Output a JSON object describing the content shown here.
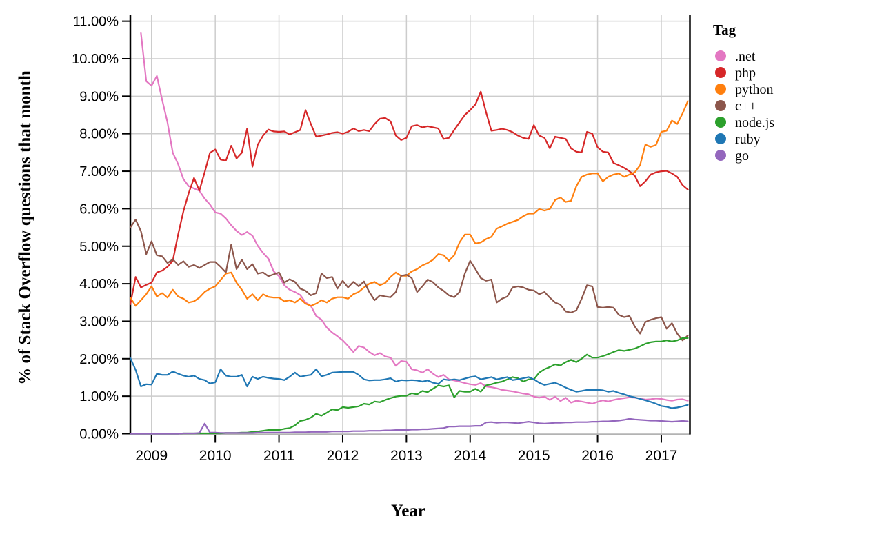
{
  "figure": {
    "background_color": "#ffffff",
    "gridline_color": "#cccccc",
    "left_spine_color": "#000000",
    "right_spine_color": "#000000",
    "bottom_axis_color": "#b3b3b3",
    "tick_color": "#000000"
  },
  "chart_data": {
    "type": "line",
    "title": "",
    "xlabel": "Year",
    "ylabel": "% of Stack Overflow questions that month",
    "legend_title": "Tag",
    "legend_position": "right-top",
    "grid": true,
    "x_unit": "decimal year, monthly samples",
    "x_start": 2008.667,
    "x_step": 0.083333,
    "xlim": [
      2008.667,
      2017.46
    ],
    "ylim": [
      0,
      11
    ],
    "x_ticks": [
      2009,
      2010,
      2011,
      2012,
      2013,
      2014,
      2015,
      2016,
      2017
    ],
    "x_tick_labels": [
      "2009",
      "2010",
      "2011",
      "2012",
      "2013",
      "2014",
      "2015",
      "2016",
      "2017"
    ],
    "y_ticks": [
      0,
      1,
      2,
      3,
      4,
      5,
      6,
      7,
      8,
      9,
      10,
      11
    ],
    "y_tick_labels": [
      "0.00%",
      "1.00%",
      "2.00%",
      "3.00%",
      "4.00%",
      "5.00%",
      "6.00%",
      "7.00%",
      "8.00%",
      "9.00%",
      "10.00%",
      "11.00%"
    ],
    "series": [
      {
        "name": ".net",
        "color": "#e377c2",
        "values": [
          null,
          null,
          10.68,
          9.4,
          9.28,
          9.54,
          8.9,
          8.3,
          7.49,
          7.19,
          6.79,
          6.6,
          6.54,
          6.48,
          6.27,
          6.11,
          5.9,
          5.87,
          5.74,
          5.56,
          5.41,
          5.3,
          5.38,
          5.28,
          5.01,
          4.82,
          4.67,
          4.33,
          4.2,
          3.96,
          3.84,
          3.78,
          3.7,
          3.5,
          3.41,
          3.14,
          3.04,
          2.83,
          2.7,
          2.6,
          2.49,
          2.34,
          2.18,
          2.34,
          2.3,
          2.18,
          2.09,
          2.15,
          2.06,
          2.03,
          1.81,
          1.94,
          1.92,
          1.72,
          1.69,
          1.63,
          1.72,
          1.6,
          1.51,
          1.57,
          1.45,
          1.42,
          1.39,
          1.35,
          1.32,
          1.3,
          1.35,
          1.26,
          1.24,
          1.21,
          1.17,
          1.15,
          1.13,
          1.1,
          1.07,
          1.05,
          0.99,
          0.96,
          0.99,
          0.9,
          0.99,
          0.87,
          0.96,
          0.83,
          0.88,
          0.86,
          0.83,
          0.8,
          0.85,
          0.89,
          0.86,
          0.9,
          0.93,
          0.95,
          0.97,
          0.96,
          0.94,
          0.91,
          0.92,
          0.94,
          0.93,
          0.9,
          0.88,
          0.91,
          0.92,
          0.88
        ]
      },
      {
        "name": "php",
        "color": "#d62728",
        "values": [
          3.45,
          4.18,
          3.9,
          3.97,
          4.03,
          4.3,
          4.35,
          4.45,
          4.61,
          5.31,
          5.93,
          6.42,
          6.82,
          6.48,
          6.97,
          7.49,
          7.58,
          7.31,
          7.28,
          7.68,
          7.34,
          7.49,
          8.14,
          7.12,
          7.71,
          7.95,
          8.11,
          8.06,
          8.05,
          8.06,
          7.98,
          8.04,
          8.1,
          8.63,
          8.26,
          7.92,
          7.95,
          7.98,
          8.02,
          8.04,
          8.0,
          8.05,
          8.14,
          8.07,
          8.1,
          8.07,
          8.26,
          8.4,
          8.42,
          8.33,
          7.95,
          7.83,
          7.89,
          8.2,
          8.23,
          8.17,
          8.2,
          8.17,
          8.14,
          7.86,
          7.89,
          8.1,
          8.3,
          8.5,
          8.63,
          8.78,
          9.12,
          8.57,
          8.08,
          8.1,
          8.13,
          8.1,
          8.04,
          7.95,
          7.89,
          7.86,
          8.23,
          7.95,
          7.89,
          7.61,
          7.92,
          7.89,
          7.86,
          7.61,
          7.52,
          7.5,
          8.05,
          8.0,
          7.64,
          7.52,
          7.5,
          7.22,
          7.16,
          7.09,
          7.0,
          6.88,
          6.6,
          6.73,
          6.91,
          6.97,
          7.0,
          7.01,
          6.94,
          6.85,
          6.63,
          6.51
        ]
      },
      {
        "name": "python",
        "color": "#ff7f0e",
        "values": [
          3.63,
          3.41,
          3.56,
          3.72,
          3.93,
          3.66,
          3.75,
          3.63,
          3.84,
          3.66,
          3.6,
          3.5,
          3.53,
          3.63,
          3.78,
          3.87,
          3.93,
          4.1,
          4.27,
          4.3,
          4.03,
          3.84,
          3.6,
          3.72,
          3.56,
          3.72,
          3.65,
          3.63,
          3.63,
          3.53,
          3.56,
          3.5,
          3.6,
          3.47,
          3.41,
          3.47,
          3.56,
          3.5,
          3.6,
          3.64,
          3.64,
          3.6,
          3.72,
          3.78,
          3.9,
          4.0,
          4.05,
          3.96,
          4.02,
          4.18,
          4.3,
          4.21,
          4.21,
          4.33,
          4.39,
          4.49,
          4.55,
          4.64,
          4.79,
          4.76,
          4.61,
          4.76,
          5.1,
          5.31,
          5.31,
          5.07,
          5.1,
          5.19,
          5.25,
          5.47,
          5.53,
          5.6,
          5.65,
          5.7,
          5.8,
          5.87,
          5.87,
          5.99,
          5.95,
          5.99,
          6.23,
          6.3,
          6.18,
          6.21,
          6.6,
          6.85,
          6.91,
          6.94,
          6.94,
          6.73,
          6.85,
          6.91,
          6.94,
          6.85,
          6.91,
          6.97,
          7.16,
          7.71,
          7.65,
          7.7,
          8.05,
          8.08,
          8.35,
          8.26,
          8.54,
          8.87
        ]
      },
      {
        "name": "c++",
        "color": "#8c564b",
        "values": [
          5.5,
          5.71,
          5.4,
          4.79,
          5.13,
          4.76,
          4.73,
          4.55,
          4.65,
          4.5,
          4.6,
          4.45,
          4.5,
          4.42,
          4.5,
          4.58,
          4.58,
          4.45,
          4.3,
          5.04,
          4.39,
          4.64,
          4.39,
          4.52,
          4.27,
          4.3,
          4.2,
          4.25,
          4.3,
          4.03,
          4.12,
          4.05,
          3.87,
          3.81,
          3.69,
          3.75,
          4.27,
          4.15,
          4.18,
          3.87,
          4.08,
          3.9,
          4.05,
          3.93,
          4.06,
          3.78,
          3.56,
          3.69,
          3.66,
          3.64,
          3.78,
          4.21,
          4.24,
          4.15,
          3.78,
          3.93,
          4.11,
          4.04,
          3.9,
          3.81,
          3.69,
          3.64,
          3.78,
          4.27,
          4.61,
          4.39,
          4.15,
          4.08,
          4.11,
          3.5,
          3.6,
          3.66,
          3.9,
          3.93,
          3.9,
          3.84,
          3.82,
          3.72,
          3.78,
          3.63,
          3.5,
          3.44,
          3.26,
          3.23,
          3.29,
          3.6,
          3.96,
          3.93,
          3.38,
          3.36,
          3.38,
          3.36,
          3.17,
          3.11,
          3.14,
          2.86,
          2.67,
          2.98,
          3.04,
          3.08,
          3.11,
          2.8,
          2.95,
          2.67,
          2.49,
          2.62
        ]
      },
      {
        "name": "node.js",
        "color": "#2ca02c",
        "values": [
          0.0,
          0.0,
          0.0,
          0.0,
          0.0,
          0.0,
          0.0,
          0.0,
          0.0,
          0.0,
          0.01,
          0.01,
          0.01,
          0.01,
          0.01,
          0.01,
          0.01,
          0.01,
          0.02,
          0.02,
          0.02,
          0.03,
          0.03,
          0.05,
          0.06,
          0.08,
          0.1,
          0.1,
          0.1,
          0.13,
          0.15,
          0.22,
          0.34,
          0.37,
          0.43,
          0.53,
          0.48,
          0.56,
          0.65,
          0.63,
          0.71,
          0.69,
          0.71,
          0.73,
          0.8,
          0.78,
          0.86,
          0.84,
          0.9,
          0.95,
          0.99,
          1.01,
          1.01,
          1.08,
          1.05,
          1.14,
          1.11,
          1.2,
          1.29,
          1.26,
          1.29,
          0.97,
          1.14,
          1.12,
          1.12,
          1.2,
          1.12,
          1.29,
          1.32,
          1.36,
          1.39,
          1.45,
          1.51,
          1.48,
          1.39,
          1.45,
          1.45,
          1.63,
          1.72,
          1.78,
          1.85,
          1.82,
          1.91,
          1.97,
          1.91,
          2.0,
          2.11,
          2.03,
          2.03,
          2.07,
          2.12,
          2.18,
          2.23,
          2.21,
          2.24,
          2.27,
          2.33,
          2.4,
          2.44,
          2.46,
          2.46,
          2.49,
          2.46,
          2.49,
          2.55,
          2.55
        ]
      },
      {
        "name": "ruby",
        "color": "#1f77b4",
        "values": [
          2.02,
          1.7,
          1.26,
          1.32,
          1.31,
          1.6,
          1.57,
          1.57,
          1.66,
          1.6,
          1.55,
          1.52,
          1.55,
          1.46,
          1.43,
          1.34,
          1.37,
          1.72,
          1.55,
          1.52,
          1.52,
          1.57,
          1.26,
          1.52,
          1.46,
          1.52,
          1.49,
          1.47,
          1.46,
          1.43,
          1.52,
          1.63,
          1.52,
          1.55,
          1.57,
          1.72,
          1.53,
          1.57,
          1.63,
          1.64,
          1.65,
          1.65,
          1.65,
          1.57,
          1.45,
          1.42,
          1.43,
          1.43,
          1.45,
          1.48,
          1.39,
          1.43,
          1.42,
          1.43,
          1.42,
          1.39,
          1.42,
          1.36,
          1.33,
          1.45,
          1.43,
          1.45,
          1.43,
          1.47,
          1.51,
          1.53,
          1.45,
          1.48,
          1.51,
          1.45,
          1.48,
          1.51,
          1.43,
          1.45,
          1.48,
          1.51,
          1.45,
          1.36,
          1.3,
          1.33,
          1.36,
          1.3,
          1.23,
          1.17,
          1.12,
          1.14,
          1.17,
          1.17,
          1.17,
          1.16,
          1.12,
          1.14,
          1.09,
          1.05,
          1.0,
          0.97,
          0.93,
          0.89,
          0.85,
          0.8,
          0.74,
          0.72,
          0.68,
          0.7,
          0.73,
          0.77
        ]
      },
      {
        "name": "go",
        "color": "#9467bd",
        "values": [
          0.0,
          0.0,
          0.0,
          0.0,
          0.0,
          0.0,
          0.0,
          0.0,
          0.0,
          0.0,
          0.01,
          0.01,
          0.01,
          0.02,
          0.27,
          0.03,
          0.03,
          0.02,
          0.02,
          0.02,
          0.02,
          0.02,
          0.02,
          0.02,
          0.03,
          0.03,
          0.03,
          0.03,
          0.03,
          0.03,
          0.03,
          0.04,
          0.04,
          0.04,
          0.05,
          0.05,
          0.05,
          0.05,
          0.06,
          0.06,
          0.06,
          0.06,
          0.07,
          0.07,
          0.07,
          0.08,
          0.08,
          0.08,
          0.09,
          0.09,
          0.1,
          0.1,
          0.1,
          0.11,
          0.11,
          0.12,
          0.12,
          0.13,
          0.14,
          0.15,
          0.19,
          0.19,
          0.2,
          0.2,
          0.2,
          0.21,
          0.21,
          0.3,
          0.31,
          0.29,
          0.3,
          0.3,
          0.29,
          0.28,
          0.3,
          0.32,
          0.3,
          0.28,
          0.27,
          0.28,
          0.29,
          0.29,
          0.3,
          0.3,
          0.31,
          0.31,
          0.31,
          0.32,
          0.32,
          0.33,
          0.33,
          0.34,
          0.35,
          0.37,
          0.4,
          0.38,
          0.37,
          0.36,
          0.35,
          0.35,
          0.34,
          0.33,
          0.32,
          0.33,
          0.34,
          0.33
        ]
      }
    ]
  }
}
